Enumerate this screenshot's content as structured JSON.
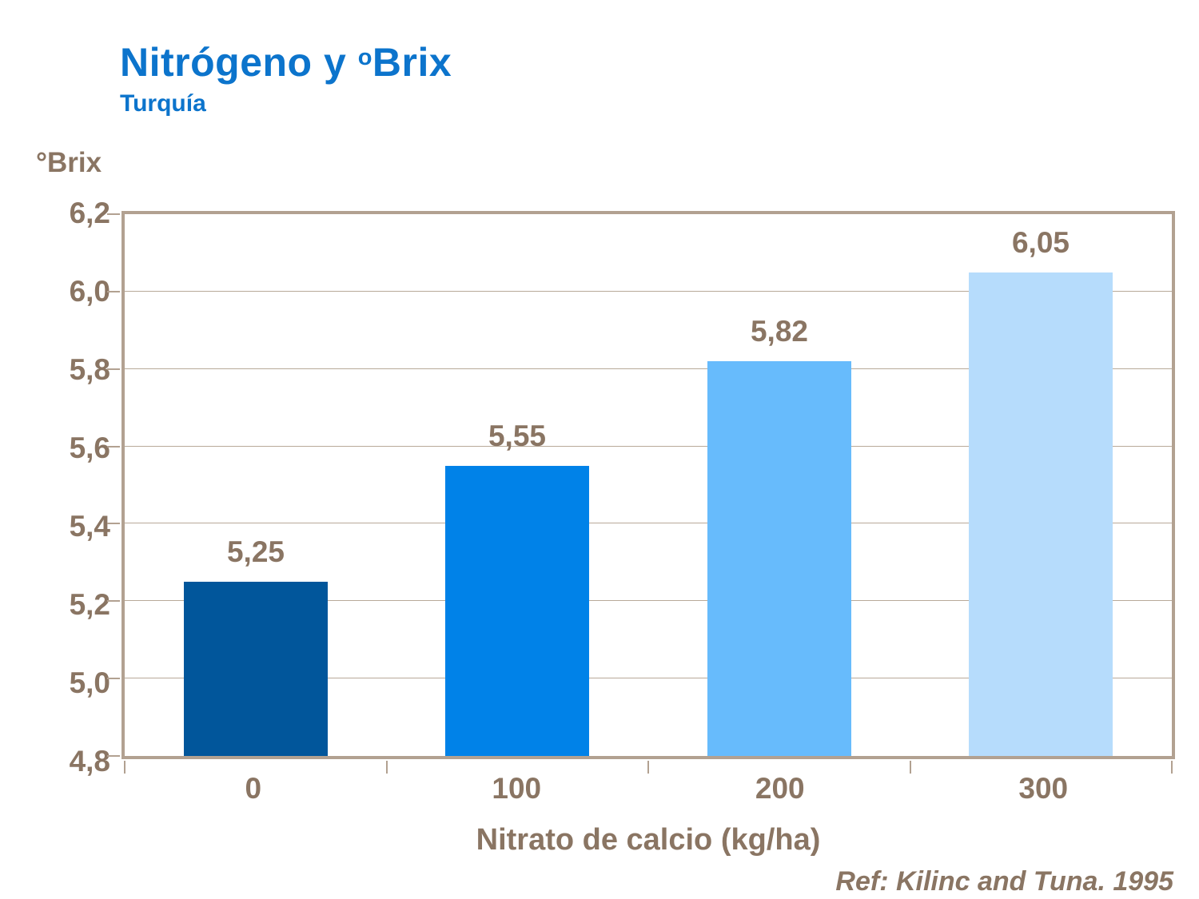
{
  "page": {
    "title_prefix": "Nitrógeno y ",
    "title_sup": "o",
    "title_suffix": "Brix",
    "subtitle": "Turquía",
    "reference": "Ref: Kilinc and Tuna. 1995"
  },
  "colors": {
    "title_blue": "#0c74cc",
    "text_brown": "#8a7563",
    "frame_tan": "#b2a191",
    "gridline_tan": "#b8a999"
  },
  "chart_data": {
    "type": "bar",
    "title": "Nitrógeno y ºBrix",
    "subtitle": "Turquía",
    "categories": [
      "0",
      "100",
      "200",
      "300"
    ],
    "values": [
      5.25,
      5.55,
      5.82,
      6.05
    ],
    "value_labels": [
      "5,25",
      "5,55",
      "5,82",
      "6,05"
    ],
    "bar_colors": [
      "#01569b",
      "#0082e8",
      "#67bbfc",
      "#b6dcfc"
    ],
    "xlabel": "Nitrato de calcio (kg/ha)",
    "ylabel": "°Brix",
    "ylim": [
      4.8,
      6.2
    ],
    "ytick_step": 0.2,
    "ytick_labels_top_to_bottom": [
      "6,2",
      "6,0",
      "5,8",
      "5,6",
      "5,4",
      "5,2",
      "5,0",
      "4,8"
    ],
    "grid": true,
    "legend": false
  }
}
